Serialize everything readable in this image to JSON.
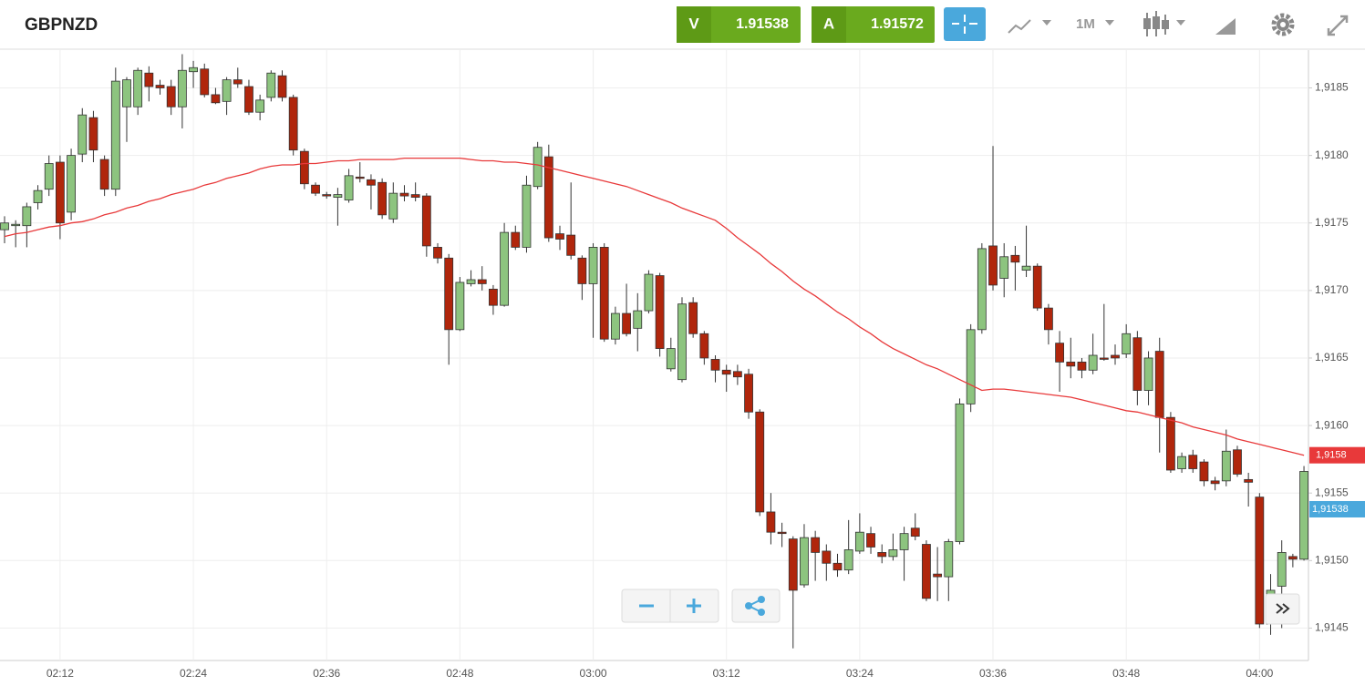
{
  "toolbar": {
    "symbol": "GBPNZD",
    "bid_letter": "V",
    "bid": "1.91538",
    "ask_letter": "A",
    "ask": "1.91572",
    "timeframe": "1M"
  },
  "chart_data": {
    "type": "candlestick",
    "categories": [
      null,
      null,
      null,
      null,
      null,
      "02:12",
      null,
      null,
      null,
      null,
      null,
      null,
      null,
      null,
      null,
      null,
      null,
      "02:24",
      null,
      null,
      null,
      null,
      null,
      null,
      null,
      null,
      null,
      null,
      null,
      "02:36",
      null,
      null,
      null,
      null,
      null,
      null,
      null,
      null,
      null,
      null,
      null,
      "02:48",
      null,
      null,
      null,
      null,
      null,
      null,
      null,
      null,
      null,
      null,
      null,
      "03:00",
      null,
      null,
      null,
      null,
      null,
      null,
      null,
      null,
      null,
      null,
      null,
      "03:12",
      null,
      null,
      null,
      null,
      null,
      null,
      null,
      null,
      null,
      null,
      null,
      "03:24",
      null,
      null,
      null,
      null,
      null,
      null,
      null,
      null,
      null,
      null,
      null,
      "03:36",
      null,
      null,
      null,
      null,
      null,
      null,
      null,
      null,
      null,
      null,
      null,
      "03:48",
      null,
      null,
      null,
      null,
      null,
      null,
      null,
      null,
      null,
      null,
      null,
      "04:00",
      null,
      null,
      null,
      null
    ],
    "open": [
      1.91745,
      1.91748,
      1.91748,
      1.91765,
      1.91775,
      1.91795,
      1.91758,
      1.91801,
      1.91828,
      1.91797,
      1.91775,
      1.91836,
      1.91836,
      1.91861,
      1.91852,
      1.91851,
      1.91836,
      1.91862,
      1.91864,
      1.91845,
      1.9184,
      1.91856,
      1.91851,
      1.91832,
      1.91843,
      1.91859,
      1.91843,
      1.91803,
      1.91778,
      1.91771,
      1.91769,
      1.91767,
      1.91784,
      1.91782,
      1.9178,
      1.91753,
      1.91772,
      1.91771,
      1.9177,
      1.91732,
      1.91724,
      1.91671,
      1.91705,
      1.91708,
      1.91701,
      1.91689,
      1.91743,
      1.91732,
      1.91777,
      1.91799,
      1.91742,
      1.91741,
      1.91724,
      1.91705,
      1.91732,
      1.91664,
      1.91683,
      1.91672,
      1.91685,
      1.91711,
      1.91642,
      1.91634,
      1.91691,
      1.91668,
      1.91649,
      1.91641,
      1.9164,
      1.91638,
      1.9161,
      1.91536,
      1.91521,
      1.91516,
      1.91482,
      1.91517,
      1.91507,
      1.91498,
      1.91493,
      1.91507,
      1.9152,
      1.91506,
      1.91503,
      1.91508,
      1.91524,
      1.91512,
      1.9149,
      1.91488,
      1.91514,
      1.91616,
      1.91671,
      1.91733,
      1.91709,
      1.91726,
      1.91715,
      1.91718,
      1.91687,
      1.91661,
      1.91647,
      1.91647,
      1.91641,
      1.9165,
      1.91652,
      1.91653,
      1.91665,
      1.91626,
      1.91655,
      1.91606,
      1.91568,
      1.91578,
      1.91573,
      1.91559,
      1.91559,
      1.91582,
      1.9156,
      1.91547,
      1.91453,
      1.91481,
      1.91503,
      1.91501
    ],
    "high": [
      1.91755,
      1.91752,
      1.91765,
      1.91778,
      1.918,
      1.918,
      1.91805,
      1.91835,
      1.91833,
      1.918,
      1.91865,
      1.91858,
      1.91865,
      1.91866,
      1.91856,
      1.91856,
      1.91875,
      1.9187,
      1.91868,
      1.9185,
      1.91858,
      1.91865,
      1.91856,
      1.91845,
      1.91863,
      1.91863,
      1.91845,
      1.91805,
      1.9178,
      1.91773,
      1.91776,
      1.9179,
      1.91795,
      1.91786,
      1.91783,
      1.9178,
      1.91778,
      1.9178,
      1.91772,
      1.91735,
      1.91727,
      1.9171,
      1.91715,
      1.91718,
      1.91704,
      1.9175,
      1.91748,
      1.91785,
      1.9181,
      1.91808,
      1.91748,
      1.9178,
      1.91726,
      1.91735,
      1.91735,
      1.91688,
      1.91705,
      1.91698,
      1.91715,
      1.91713,
      1.91665,
      1.91695,
      1.91695,
      1.9167,
      1.91652,
      1.91645,
      1.91645,
      1.91642,
      1.91612,
      1.9155,
      1.91528,
      1.91518,
      1.91527,
      1.91522,
      1.91512,
      1.91505,
      1.9153,
      1.91535,
      1.91525,
      1.91512,
      1.9152,
      1.91525,
      1.91535,
      1.91515,
      1.9151,
      1.91516,
      1.9162,
      1.91675,
      1.91735,
      1.91807,
      1.91735,
      1.91733,
      1.91748,
      1.9172,
      1.9169,
      1.9167,
      1.91665,
      1.9165,
      1.91668,
      1.9169,
      1.9166,
      1.91675,
      1.9167,
      1.91655,
      1.91665,
      1.9161,
      1.9158,
      1.91582,
      1.91575,
      1.91562,
      1.91597,
      1.91585,
      1.91565,
      1.9155,
      1.9149,
      1.91515,
      1.91505,
      1.9157
    ],
    "low": [
      1.91735,
      1.91732,
      1.91732,
      1.9176,
      1.9177,
      1.91738,
      1.91752,
      1.91795,
      1.91795,
      1.9177,
      1.9177,
      1.9181,
      1.9183,
      1.9184,
      1.91845,
      1.9183,
      1.9182,
      1.9185,
      1.91843,
      1.91838,
      1.9183,
      1.9185,
      1.9183,
      1.91826,
      1.9184,
      1.9184,
      1.918,
      1.91775,
      1.9177,
      1.91768,
      1.91748,
      1.91765,
      1.9178,
      1.9176,
      1.91753,
      1.9175,
      1.91766,
      1.91766,
      1.91725,
      1.9172,
      1.91645,
      1.9167,
      1.91703,
      1.917,
      1.91682,
      1.91688,
      1.9173,
      1.91728,
      1.91775,
      1.91736,
      1.9173,
      1.91723,
      1.91693,
      1.91665,
      1.91662,
      1.9166,
      1.91666,
      1.91655,
      1.91683,
      1.91651,
      1.9164,
      1.91632,
      1.91665,
      1.91645,
      1.91632,
      1.91625,
      1.9163,
      1.91605,
      1.91533,
      1.91512,
      1.9151,
      1.91435,
      1.9148,
      1.91485,
      1.91485,
      1.91488,
      1.9149,
      1.91505,
      1.91505,
      1.91498,
      1.915,
      1.91485,
      1.91515,
      1.9147,
      1.9147,
      1.9147,
      1.91512,
      1.9161,
      1.91668,
      1.917,
      1.91695,
      1.917,
      1.9171,
      1.91685,
      1.9166,
      1.91625,
      1.91635,
      1.91635,
      1.91638,
      1.91648,
      1.91645,
      1.9165,
      1.91615,
      1.91615,
      1.9158,
      1.91565,
      1.91565,
      1.91565,
      1.91555,
      1.91552,
      1.91555,
      1.91562,
      1.9154,
      1.9145,
      1.91445,
      1.9145,
      1.91495,
      1.915
    ],
    "close": [
      1.9175,
      1.91749,
      1.91762,
      1.91774,
      1.91794,
      1.9175,
      1.918,
      1.9183,
      1.91804,
      1.91775,
      1.91855,
      1.91856,
      1.91863,
      1.91851,
      1.9185,
      1.91836,
      1.91863,
      1.91865,
      1.91845,
      1.91839,
      1.91856,
      1.91853,
      1.91832,
      1.91841,
      1.91861,
      1.91843,
      1.91804,
      1.91779,
      1.91772,
      1.9177,
      1.91771,
      1.91785,
      1.91783,
      1.91778,
      1.91756,
      1.91772,
      1.9177,
      1.91769,
      1.91733,
      1.91724,
      1.91671,
      1.91706,
      1.91708,
      1.91705,
      1.91689,
      1.91743,
      1.91732,
      1.91778,
      1.91806,
      1.91739,
      1.91738,
      1.91726,
      1.91705,
      1.91732,
      1.91664,
      1.91683,
      1.91668,
      1.91685,
      1.91712,
      1.91657,
      1.91657,
      1.9169,
      1.91668,
      1.9165,
      1.91641,
      1.91638,
      1.91636,
      1.9161,
      1.91536,
      1.91521,
      1.9152,
      1.91478,
      1.91517,
      1.91506,
      1.91498,
      1.91493,
      1.91508,
      1.91521,
      1.9151,
      1.91503,
      1.91508,
      1.9152,
      1.91518,
      1.91472,
      1.91488,
      1.91514,
      1.91616,
      1.91671,
      1.91731,
      1.91704,
      1.91725,
      1.91721,
      1.91718,
      1.91687,
      1.91671,
      1.91647,
      1.91644,
      1.91641,
      1.91652,
      1.91649,
      1.9165,
      1.91668,
      1.91626,
      1.9165,
      1.91606,
      1.91567,
      1.91577,
      1.91568,
      1.91559,
      1.91557,
      1.91581,
      1.91564,
      1.91558,
      1.91453,
      1.91478,
      1.91506,
      1.91501,
      1.91566
    ],
    "up_color": "#8dc47f",
    "down_color": "#b0260c",
    "moving_average": {
      "color": "#e8393a",
      "last_value_label": "1,9158",
      "values": [
        1.9174,
        1.91742,
        1.91743,
        1.91745,
        1.91747,
        1.91748,
        1.9175,
        1.91751,
        1.91753,
        1.91756,
        1.91758,
        1.91761,
        1.91763,
        1.91766,
        1.91768,
        1.91771,
        1.91773,
        1.91775,
        1.91778,
        1.9178,
        1.91783,
        1.91785,
        1.91787,
        1.9179,
        1.91792,
        1.91793,
        1.91793,
        1.91794,
        1.91794,
        1.91795,
        1.91796,
        1.91796,
        1.91797,
        1.91797,
        1.91797,
        1.91797,
        1.91798,
        1.91798,
        1.91798,
        1.91798,
        1.91798,
        1.91798,
        1.91797,
        1.91796,
        1.91796,
        1.91795,
        1.91795,
        1.91794,
        1.91793,
        1.91791,
        1.91789,
        1.91787,
        1.91785,
        1.91783,
        1.91781,
        1.91779,
        1.91777,
        1.91774,
        1.91771,
        1.91768,
        1.91765,
        1.91761,
        1.91758,
        1.91755,
        1.91752,
        1.91746,
        1.91739,
        1.91733,
        1.91727,
        1.9172,
        1.91714,
        1.91707,
        1.91701,
        1.91696,
        1.9169,
        1.91684,
        1.91679,
        1.91673,
        1.91668,
        1.91662,
        1.91657,
        1.91653,
        1.91649,
        1.91645,
        1.91642,
        1.91638,
        1.91634,
        1.9163,
        1.91626,
        1.91627,
        1.91627,
        1.91626,
        1.91625,
        1.91624,
        1.91623,
        1.91622,
        1.91621,
        1.91619,
        1.91617,
        1.91615,
        1.91613,
        1.91611,
        1.9161,
        1.91608,
        1.91606,
        1.91604,
        1.91602,
        1.91599,
        1.91597,
        1.91595,
        1.91593,
        1.9159,
        1.91588,
        1.91586,
        1.91584,
        1.91582,
        1.9158,
        1.91578
      ]
    },
    "bid_marker": {
      "value": 1.91538,
      "label": "1,91538",
      "color": "#4aa8dc"
    },
    "ylim": [
      1.91426,
      1.91878
    ],
    "yticks": [
      {
        "value": 1.9145,
        "label": "1,9145"
      },
      {
        "value": 1.915,
        "label": "1,9150"
      },
      {
        "value": 1.9155,
        "label": "1,9155"
      },
      {
        "value": 1.916,
        "label": "1,9160"
      },
      {
        "value": 1.9165,
        "label": "1,9165"
      },
      {
        "value": 1.917,
        "label": "1,9170"
      },
      {
        "value": 1.9175,
        "label": "1,9175"
      },
      {
        "value": 1.918,
        "label": "1,9180"
      },
      {
        "value": 1.9185,
        "label": "1,9185"
      }
    ],
    "grid": true
  }
}
